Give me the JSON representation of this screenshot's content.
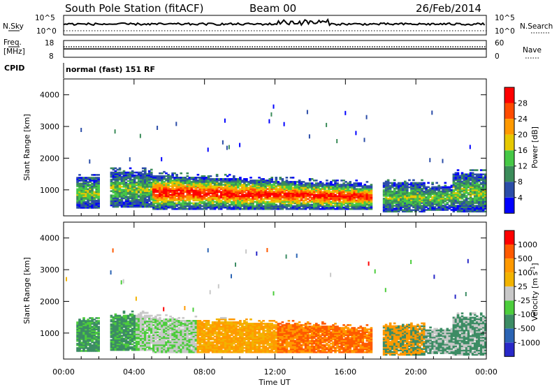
{
  "header": {
    "station": "South Pole Station (fitACF)",
    "beam": "Beam 00",
    "date": "26/Feb/2014",
    "mode": "normal (fast) 151 RF"
  },
  "panels": {
    "nsky": {
      "label": "N.Sky",
      "ticks_left": [
        "10^5",
        "10^0"
      ],
      "ticks_right": [
        "10^5",
        "10^0"
      ],
      "right_label": "N.Search"
    },
    "freq": {
      "label_top": "Freq.",
      "label_unit": "[MHz]",
      "left_ticks": [
        "18",
        "8"
      ],
      "right_ticks": [
        "60",
        "0"
      ],
      "right_label": "Nave"
    },
    "cpid": {
      "label": "CPID"
    }
  },
  "colors": {
    "power": [
      "#0000ff",
      "#2b4da8",
      "#3b8c5a",
      "#46c846",
      "#e6c800",
      "#ff9900",
      "#ff4b00",
      "#ff0000"
    ],
    "velocity": [
      "#ff0000",
      "#ff5a00",
      "#ff9900",
      "#f2b300",
      "#c8c8c8",
      "#4ccd3c",
      "#3c8c64",
      "#2b64b4",
      "#2828c8"
    ]
  },
  "chart_data": [
    {
      "type": "heatmap",
      "name": "power",
      "xlabel": "Time UT",
      "ylabel": "Slant Range [km]",
      "xlim": [
        0,
        24
      ],
      "ylim": [
        180,
        4500
      ],
      "x_ticks": [
        "00:00",
        "04:00",
        "08:00",
        "12:00",
        "16:00",
        "20:00",
        "00:00"
      ],
      "y_ticks": [
        "1000",
        "2000",
        "3000",
        "4000"
      ],
      "colorbar": {
        "label": "Power [dB]",
        "ticks": [
          "4",
          "8",
          "12",
          "16",
          "20",
          "24",
          "28"
        ]
      }
    },
    {
      "type": "heatmap",
      "name": "velocity",
      "xlabel": "Time UT",
      "ylabel": "Slant Range [km]",
      "xlim": [
        0,
        24
      ],
      "ylim": [
        180,
        4500
      ],
      "x_ticks": [
        "00:00",
        "04:00",
        "08:00",
        "12:00",
        "16:00",
        "20:00",
        "00:00"
      ],
      "y_ticks": [
        "1000",
        "2000",
        "3000",
        "4000"
      ],
      "colorbar": {
        "label": "Velocity [m s^-1]",
        "ticks": [
          "1000",
          "500",
          "100",
          "25",
          "-25",
          "-100",
          "-500",
          "-1000"
        ]
      }
    }
  ]
}
